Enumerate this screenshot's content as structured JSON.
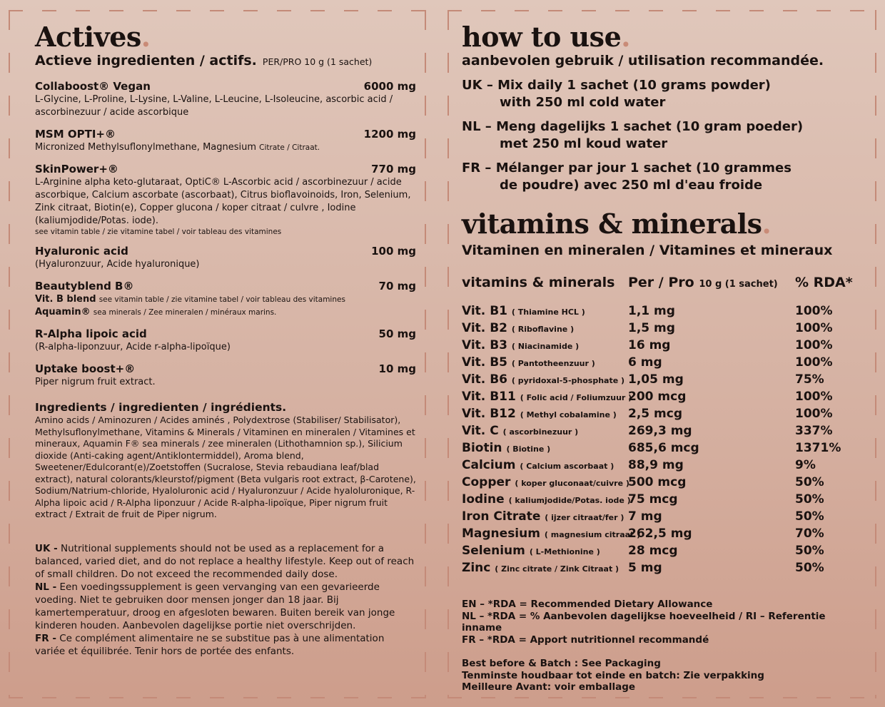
{
  "left": {
    "title": "Actives",
    "subtitle": "Actieve ingredienten / actifs.",
    "per": "PER/PRO 10 g (1 sachet)",
    "items": [
      {
        "name": "Collaboost® Vegan",
        "amount": "6000 mg",
        "desc": "L-Glycine, L-Proline, L-Lysine, L-Valine, L-Leucine, L-Isoleucine, ascorbic acid / ascorbinezuur / acide ascorbique"
      },
      {
        "name": "MSM OPTI+®",
        "amount": "1200 mg",
        "desc": "Micronized Methylsuflonylmethane, Magnesium",
        "note": "Citrate / Citraat."
      },
      {
        "name": "SkinPower+®",
        "amount": "770 mg",
        "desc": "L-Arginine alpha keto-glutaraat, OptiC® L-Ascorbic acid / ascorbinezuur / acide ascorbique, Calcium ascorbate (ascorbaat), Citrus bioflavoinoids, Iron, Selenium, Zink citraat, Biotin(e), Copper glucona / koper citraat / culvre , Iodine (kaliumjodide/Potas. iode).",
        "note": "see vitamin table / zie vitamine tabel / voir tableau des vitamines"
      },
      {
        "name": "Hyaluronic acid",
        "amount": "100 mg",
        "desc": "(Hyaluronzuur, Acide hyaluronique)"
      },
      {
        "name": "Beautyblend B®",
        "amount": "70 mg",
        "line1b": "Vit. B blend",
        "line1": "see vitamin table / zie vitamine tabel / voir tableau des vitamines",
        "line2b": "Aquamin®",
        "line2": "sea minerals / Zee mineralen / minéraux marins."
      },
      {
        "name": "R-Alpha lipoic acid",
        "amount": "50 mg",
        "desc": "(R-alpha-liponzuur, Acide r-alpha-lipoïque)"
      },
      {
        "name": "Uptake boost+®",
        "amount": "10 mg",
        "desc": "Piper nigrum fruit extract."
      }
    ],
    "ingredients_title": "Ingredients / ingredienten / ingrédients.",
    "ingredients": "Amino acids / Aminozuren / Acides aminés , Polydextrose (Stabiliser/ Stabilisator), Methylsuflonylmethane, Vitamins & Minerals / Vitaminen en mineralen / Vitamines et mineraux, Aquamin F® sea minerals / zee mineralen (Lithothamnion sp.), Silicium dioxide (Anti-caking agent/Antiklontermiddel), Aroma blend, Sweetener/Edulcorant(e)/Zoetstoffen (Sucralose, Stevia rebaudiana leaf/blad extract), natural colorants/kleurstof/pigment (Beta vulgaris root extract, β-Carotene), Sodium/Natrium-chloride, Hyaloluronic acid / Hyaluronzuur / Acide hyaloluronique, R-Alpha lipoic acid / R-Alpha liponzuur / Acide R-alpha-lipoïque, Piper nigrum fruit extract / Extrait de fruit de Piper nigrum.",
    "warnings": [
      {
        "lang": "UK -",
        "text": "Nutritional supplements should not be used as a replacement for a balanced, varied diet, and do not replace a healthy lifestyle. Keep out of reach of small children. Do not exceed the recommended daily dose."
      },
      {
        "lang": "NL -",
        "text": "Een voedingssupplement is geen vervanging van een gevarieerde voeding. Niet te gebruiken door mensen jonger dan 18 jaar. Bij kamertemperatuur, droog en afgesloten bewaren. Buiten bereik van jonge kinderen houden. Aanbevolen dagelijkse portie niet overschrijden."
      },
      {
        "lang": "FR -",
        "text": "Ce complément alimentaire ne se substitue pas à une alimentation variée et équilibrée. Tenir hors de portée des enfants."
      }
    ]
  },
  "right": {
    "title": "how to use",
    "subtitle": "aanbevolen gebruik / utilisation recommandée.",
    "how": [
      {
        "a": "UK – Mix daily 1 sachet (10 grams powder)",
        "b": "with 250 ml cold water"
      },
      {
        "a": "NL – Meng dagelijks 1 sachet (10 gram poeder)",
        "b": "met 250 ml koud water"
      },
      {
        "a": "FR – Mélanger par jour 1 sachet (10 grammes",
        "b": "de poudre) avec 250 ml d'eau froide"
      }
    ],
    "title2": "vitamins & minerals",
    "subtitle2": "Vitaminen en mineralen / Vitamines et mineraux",
    "table": {
      "h1": "vitamins & minerals",
      "h2": "Per / Pro",
      "h2s": "10 g (1 sachet)",
      "h3": "% RDA*",
      "rows": [
        {
          "n": "Vit. B1",
          "s": "( Thiamine HCL )",
          "a": "1,1 mg",
          "r": "100%"
        },
        {
          "n": "Vit. B2",
          "s": "( Riboflavine )",
          "a": "1,5 mg",
          "r": "100%"
        },
        {
          "n": "Vit. B3",
          "s": "( Niacinamide )",
          "a": "16 mg",
          "r": "100%"
        },
        {
          "n": "Vit. B5",
          "s": "( Pantotheenzuur )",
          "a": "6 mg",
          "r": "100%"
        },
        {
          "n": "Vit. B6",
          "s": "( pyridoxal-5-phosphate )",
          "a": "1,05 mg",
          "r": "75%"
        },
        {
          "n": "Vit. B11",
          "s": "( Folic acid / Foliumzuur )",
          "a": "200 mcg",
          "r": "100%"
        },
        {
          "n": "Vit. B12",
          "s": "( Methyl cobalamine )",
          "a": "2,5 mcg",
          "r": "100%"
        },
        {
          "n": "Vit. C",
          "s": "( ascorbinezuur )",
          "a": "269,3 mg",
          "r": "337%"
        },
        {
          "n": "Biotin",
          "s": "( Biotine )",
          "a": "685,6 mcg",
          "r": "1371%"
        },
        {
          "n": "Calcium",
          "s": "( Calcium ascorbaat )",
          "a": "88,9 mg",
          "r": "9%"
        },
        {
          "n": "Copper",
          "s": "( koper gluconaat/cuivre )",
          "a": "500 mcg",
          "r": "50%"
        },
        {
          "n": "Iodine",
          "s": "( kaliumjodide/Potas. iode )",
          "a": "75 mcg",
          "r": "50%"
        },
        {
          "n": "Iron Citrate",
          "s": "( ijzer citraat/fer )",
          "a": "7 mg",
          "r": "50%"
        },
        {
          "n": "Magnesium",
          "s": "( magnesium citraat )",
          "a": "262,5 mg",
          "r": "70%"
        },
        {
          "n": "Selenium",
          "s": "( L-Methionine )",
          "a": "28 mcg",
          "r": "50%"
        },
        {
          "n": "Zinc",
          "s": "( Zinc citrate / Zink Citraat )",
          "a": "5 mg",
          "r": "50%"
        }
      ]
    },
    "rda": [
      "EN – *RDA = Recommended Dietary Allowance",
      "NL – *RDA = % Aanbevolen dagelijkse hoeveelheid / RI – Referentie inname",
      "FR – *RDA = Apport nutritionnel recommandé"
    ],
    "batch": [
      "Best before & Batch : See Packaging",
      "Tenminste houdbaar tot einde en batch: Zie verpakking",
      "Meilleure Avant: voir emballage"
    ]
  },
  "colors": {
    "accent": "#c98b77",
    "text": "#1a1210"
  }
}
